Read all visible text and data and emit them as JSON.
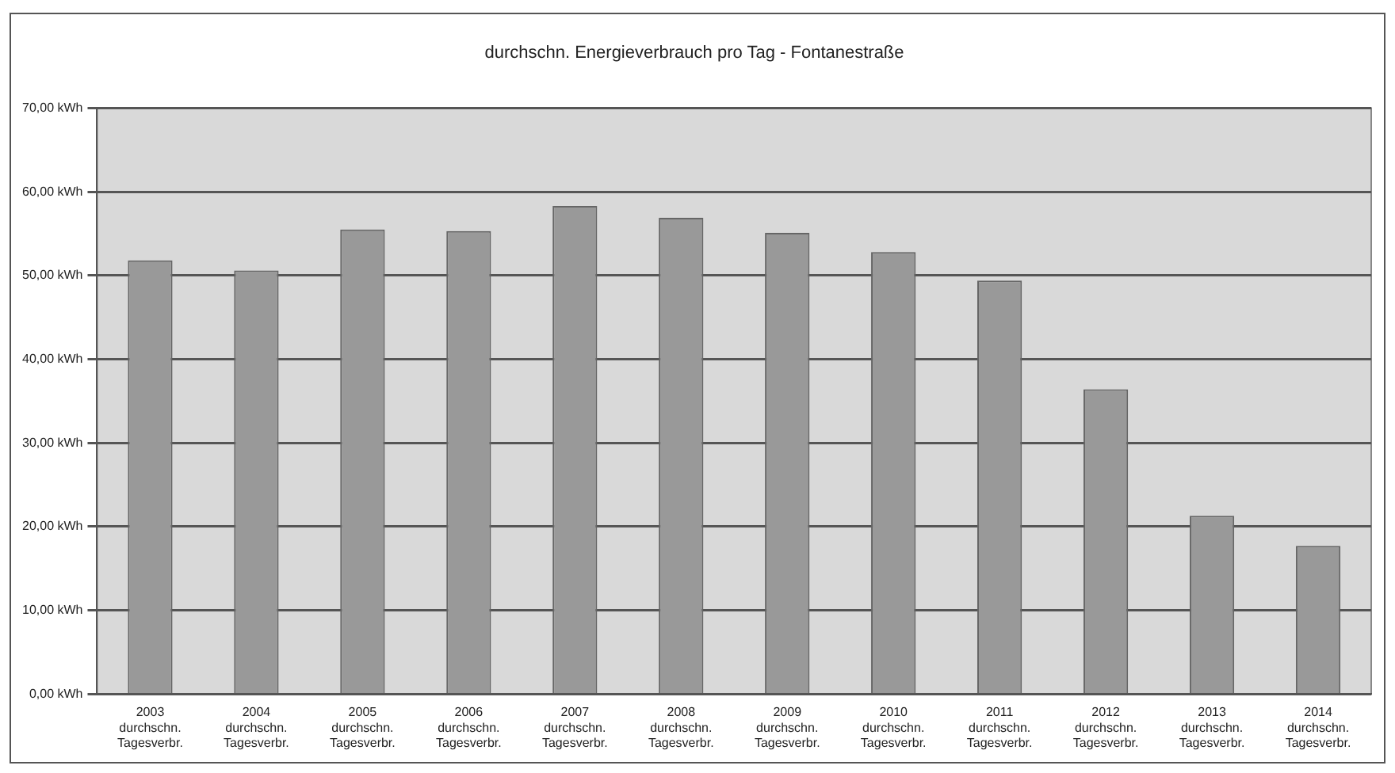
{
  "chart_data": {
    "type": "bar",
    "title": "durchschn. Energieverbrauch pro Tag - Fontanestraße",
    "categories": [
      "2003\ndurchschn.\nTagesverbr.",
      "2004\ndurchschn.\nTagesverbr.",
      "2005\ndurchschn.\nTagesverbr.",
      "2006\ndurchschn.\nTagesverbr.",
      "2007\ndurchschn.\nTagesverbr.",
      "2008\ndurchschn.\nTagesverbr.",
      "2009\ndurchschn.\nTagesverbr.",
      "2010\ndurchschn.\nTagesverbr.",
      "2011\ndurchschn.\nTagesverbr.",
      "2012\ndurchschn.\nTagesverbr.",
      "2013\ndurchschn.\nTagesverbr.",
      "2014\ndurchschn.\nTagesverbr."
    ],
    "values": [
      51.8,
      50.6,
      55.5,
      55.3,
      58.3,
      56.9,
      55.1,
      52.8,
      49.4,
      36.4,
      21.3,
      17.7
    ],
    "color": "#999999",
    "ylim": [
      0,
      70
    ],
    "yticks": [
      {
        "value": 0,
        "label": "0,00 kWh"
      },
      {
        "value": 10,
        "label": "10,00 kWh"
      },
      {
        "value": 20,
        "label": "20,00 kWh"
      },
      {
        "value": 30,
        "label": "30,00 kWh"
      },
      {
        "value": 40,
        "label": "40,00 kWh"
      },
      {
        "value": 50,
        "label": "50,00 kWh"
      },
      {
        "value": 60,
        "label": "60,00 kWh"
      },
      {
        "value": 70,
        "label": "70,00 kWh"
      }
    ],
    "grid": "y",
    "legend": false
  }
}
